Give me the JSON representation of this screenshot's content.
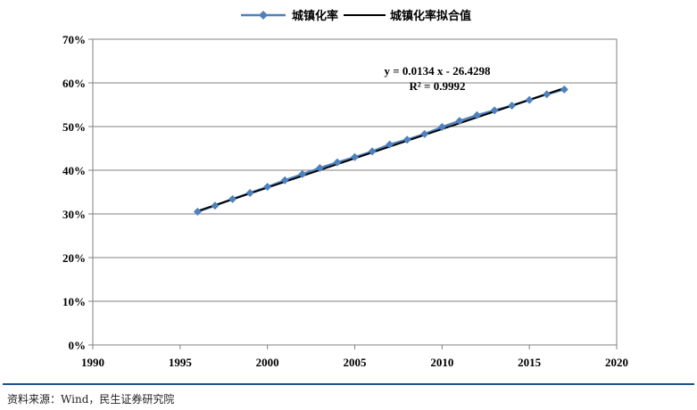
{
  "chart_data": {
    "type": "line",
    "series": [
      {
        "name": "城镇化率",
        "color": "#4f81bd",
        "marker": "diamond",
        "x": [
          1996,
          1997,
          1998,
          1999,
          2000,
          2001,
          2002,
          2003,
          2004,
          2005,
          2006,
          2007,
          2008,
          2009,
          2010,
          2011,
          2012,
          2013,
          2014,
          2015,
          2016,
          2017
        ],
        "values": [
          30.5,
          31.9,
          33.4,
          34.8,
          36.2,
          37.7,
          39.1,
          40.5,
          41.8,
          43.0,
          44.3,
          45.9,
          47.0,
          48.3,
          49.9,
          51.3,
          52.6,
          53.7,
          54.8,
          56.1,
          57.4,
          58.5
        ]
      },
      {
        "name": "城镇化率拟合值",
        "color": "#000000",
        "x": [
          1996,
          2017
        ],
        "values": [
          30.66,
          58.8
        ]
      }
    ],
    "xlim": [
      1990,
      2020
    ],
    "ylim": [
      0,
      70
    ],
    "x_ticks": [
      "1990",
      "1995",
      "2000",
      "2005",
      "2010",
      "2015",
      "2020"
    ],
    "y_ticks": [
      "0%",
      "10%",
      "20%",
      "30%",
      "40%",
      "50%",
      "60%",
      "70%"
    ],
    "annotation": {
      "line1": "y = 0.0134 x - 26.4298",
      "line2": "R² = 0.9992"
    },
    "grid": "horizontal",
    "legend_position": "top-center"
  },
  "source": "资料来源：Wind，民生证券研究院"
}
